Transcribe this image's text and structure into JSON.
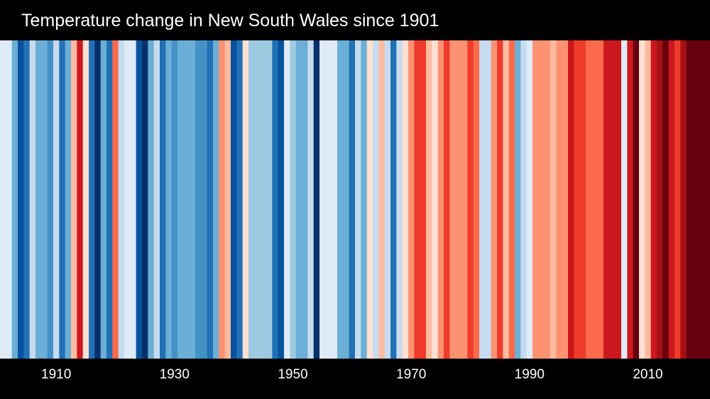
{
  "chart_data": {
    "type": "bar",
    "title": "Temperature change in New South Wales since 1901",
    "x_start": 1901,
    "x_end": 2020,
    "tick_labels": [
      "1910",
      "1930",
      "1950",
      "1970",
      "1990",
      "2010"
    ],
    "tick_years": [
      1910,
      1930,
      1950,
      1970,
      1990,
      2010
    ],
    "categories": [
      1901,
      1902,
      1903,
      1904,
      1905,
      1906,
      1907,
      1908,
      1909,
      1910,
      1911,
      1912,
      1913,
      1914,
      1915,
      1916,
      1917,
      1918,
      1919,
      1920,
      1921,
      1922,
      1923,
      1924,
      1925,
      1926,
      1927,
      1928,
      1929,
      1930,
      1931,
      1932,
      1933,
      1934,
      1935,
      1936,
      1937,
      1938,
      1939,
      1940,
      1941,
      1942,
      1943,
      1944,
      1945,
      1946,
      1947,
      1948,
      1949,
      1950,
      1951,
      1952,
      1953,
      1954,
      1955,
      1956,
      1957,
      1958,
      1959,
      1960,
      1961,
      1962,
      1963,
      1964,
      1965,
      1966,
      1967,
      1968,
      1969,
      1970,
      1971,
      1972,
      1973,
      1974,
      1975,
      1976,
      1977,
      1978,
      1979,
      1980,
      1981,
      1982,
      1983,
      1984,
      1985,
      1986,
      1987,
      1988,
      1989,
      1990,
      1991,
      1992,
      1993,
      1994,
      1995,
      1996,
      1997,
      1998,
      1999,
      2000,
      2001,
      2002,
      2003,
      2004,
      2005,
      2006,
      2007,
      2008,
      2009,
      2010,
      2011,
      2012,
      2013,
      2014,
      2015,
      2016,
      2017,
      2018,
      2019,
      2020
    ],
    "colors": [
      "#deebf7",
      "#deebf7",
      "#6baed6",
      "#08519c",
      "#2171b5",
      "#c6dbef",
      "#6baed6",
      "#6baed6",
      "#4292c6",
      "#c6dbef",
      "#2171b5",
      "#6baed6",
      "#fcbba1",
      "#cb181d",
      "#fee0d2",
      "#2171b5",
      "#08306b",
      "#6baed6",
      "#2171b5",
      "#fb6a4a",
      "#c6dbef",
      "#deebf7",
      "#deebf7",
      "#08519c",
      "#08306b",
      "#6baed6",
      "#c6dbef",
      "#2171b5",
      "#6baed6",
      "#4292c6",
      "#6baed6",
      "#6baed6",
      "#6baed6",
      "#4292c6",
      "#4292c6",
      "#2171b5",
      "#6baed6",
      "#fc9272",
      "#fcbba1",
      "#08519c",
      "#2171b5",
      "#fee0d2",
      "#9ecae1",
      "#9ecae1",
      "#9ecae1",
      "#9ecae1",
      "#2171b5",
      "#08519c",
      "#deebf7",
      "#9ecae1",
      "#6baed6",
      "#6baed6",
      "#c6dbef",
      "#08306b",
      "#deebf7",
      "#deebf7",
      "#deebf7",
      "#6baed6",
      "#6baed6",
      "#2171b5",
      "#c6dbef",
      "#6baed6",
      "#fee0d2",
      "#c6dbef",
      "#fcbba1",
      "#c6dbef",
      "#2171b5",
      "#c6dbef",
      "#fee0d2",
      "#fc9272",
      "#ef3b2c",
      "#ef3b2c",
      "#fcbba1",
      "#fee0d2",
      "#fc9272",
      "#ef3b2c",
      "#fc9272",
      "#fc9272",
      "#fc9272",
      "#ef3b2c",
      "#fb6a4a",
      "#c6dbef",
      "#c6dbef",
      "#fc9272",
      "#ef3b2c",
      "#fcbba1",
      "#fb6a4a",
      "#6baed6",
      "#c6dbef",
      "#deebf7",
      "#fc9272",
      "#fc9272",
      "#fc9272",
      "#fcbba1",
      "#fc9272",
      "#fc9272",
      "#cb181d",
      "#ef3b2c",
      "#ef3b2c",
      "#fb6a4a",
      "#fb6a4a",
      "#fb6a4a",
      "#cb181d",
      "#cb181d",
      "#cb181d",
      "#deebf7",
      "#cb181d",
      "#67000d",
      "#fee0d2",
      "#fcbba1",
      "#cb181d",
      "#a50f15",
      "#67000d",
      "#cb181d",
      "#ef3b2c",
      "#a50f15",
      "#67000d",
      "#67000d",
      "#67000d",
      "#67000d"
    ]
  }
}
